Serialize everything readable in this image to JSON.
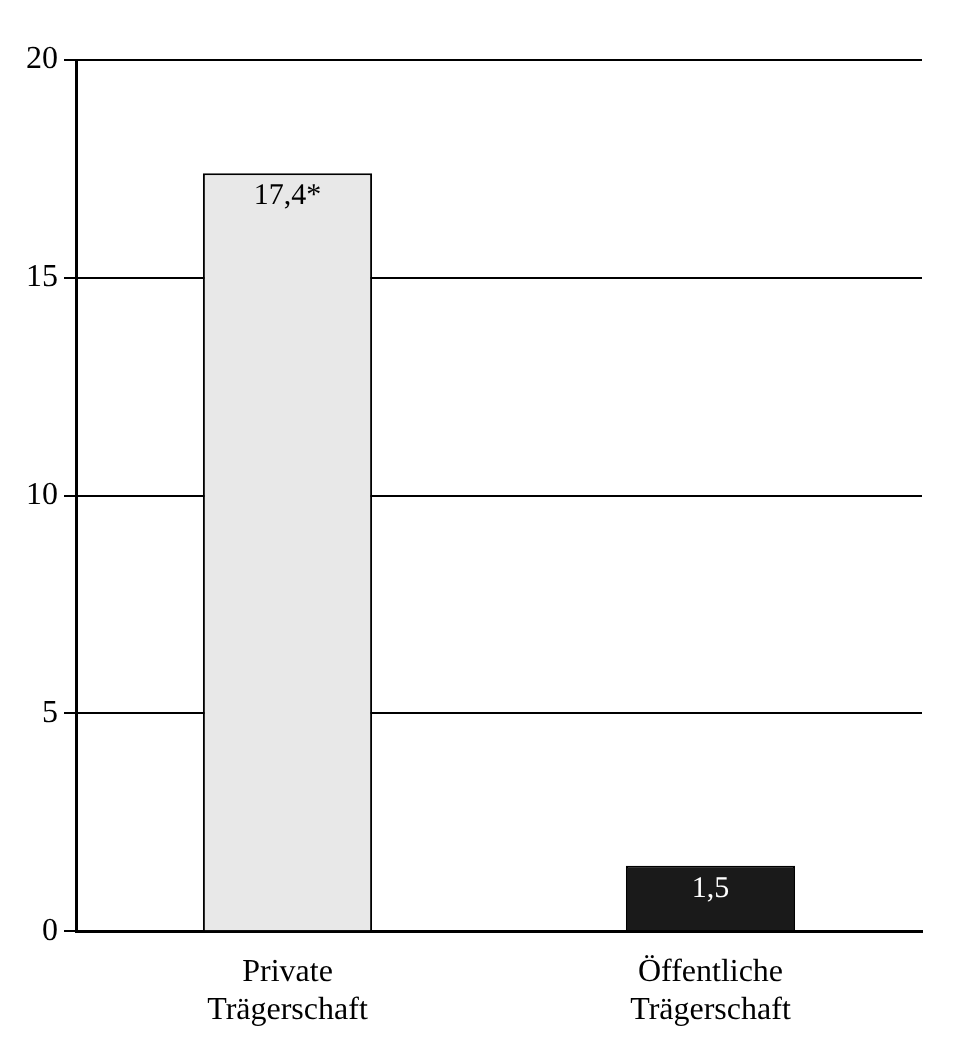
{
  "chart_data": {
    "type": "bar",
    "categories": [
      "Private Trägerschaft",
      "Öffentliche Trägerschaft"
    ],
    "values": [
      17.4,
      1.5
    ],
    "colors": [
      "#e8e8e8",
      "#1a1a1a"
    ],
    "value_labels": [
      "17,4*",
      "1,5"
    ],
    "ylim": [
      0,
      20
    ],
    "yticks": [
      0,
      5,
      10,
      15,
      20
    ],
    "grid": "y"
  }
}
